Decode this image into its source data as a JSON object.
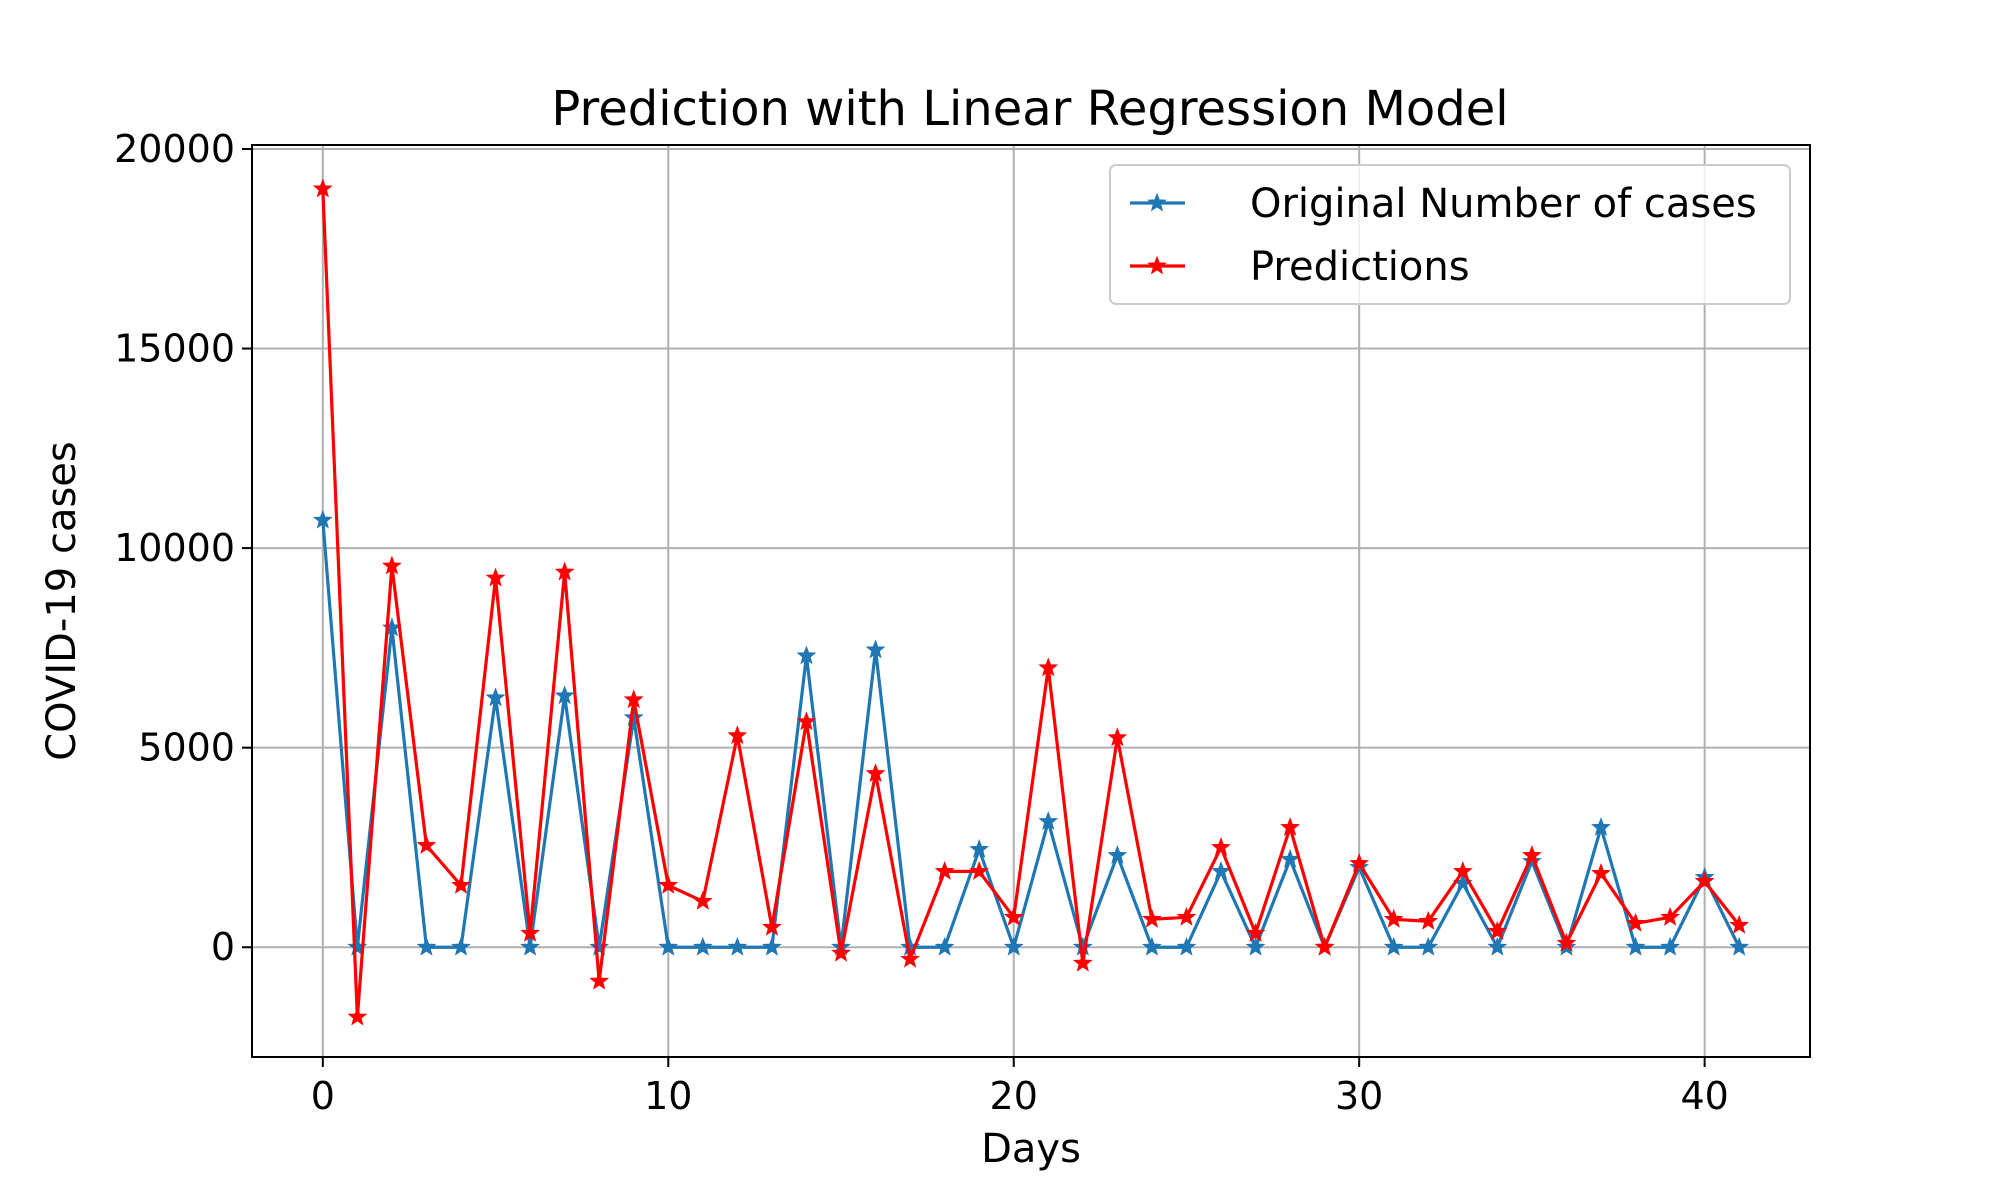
{
  "chart_data": {
    "type": "line",
    "title": "Prediction with Linear Regression Model",
    "xlabel": "Days",
    "ylabel": "COVID-19 cases",
    "xlim": [
      -2.05,
      43.05
    ],
    "ylim": [
      -2750,
      20100
    ],
    "xticks": [
      0,
      10,
      20,
      30,
      40
    ],
    "yticks": [
      0,
      5000,
      10000,
      15000,
      20000
    ],
    "grid": true,
    "legend_position": "top-right",
    "x": [
      0,
      1,
      2,
      3,
      4,
      5,
      6,
      7,
      8,
      9,
      10,
      11,
      12,
      13,
      14,
      15,
      16,
      17,
      18,
      19,
      20,
      21,
      22,
      23,
      24,
      25,
      26,
      27,
      28,
      29,
      30,
      31,
      32,
      33,
      34,
      35,
      36,
      37,
      38,
      39,
      40,
      41
    ],
    "series": [
      {
        "name": "Original Number of cases",
        "color": "#1f77b4",
        "marker": "star",
        "values": [
          10700,
          0,
          8000,
          0,
          0,
          6250,
          0,
          6300,
          0,
          5750,
          0,
          0,
          0,
          0,
          7300,
          0,
          7450,
          0,
          0,
          2450,
          0,
          3150,
          0,
          2300,
          0,
          0,
          1900,
          0,
          2200,
          0,
          2000,
          0,
          0,
          1600,
          0,
          2150,
          0,
          3000,
          0,
          0,
          1750,
          0
        ]
      },
      {
        "name": "Predictions",
        "color": "#ff0000",
        "marker": "star",
        "values": [
          19000,
          -1750,
          9550,
          2550,
          1550,
          9250,
          350,
          9400,
          -850,
          6200,
          1550,
          1150,
          5300,
          500,
          5650,
          -150,
          4350,
          -300,
          1900,
          1900,
          750,
          7000,
          -400,
          5250,
          700,
          750,
          2500,
          350,
          3000,
          0,
          2100,
          700,
          650,
          1900,
          400,
          2300,
          100,
          1850,
          600,
          750,
          1650,
          550
        ]
      }
    ]
  }
}
